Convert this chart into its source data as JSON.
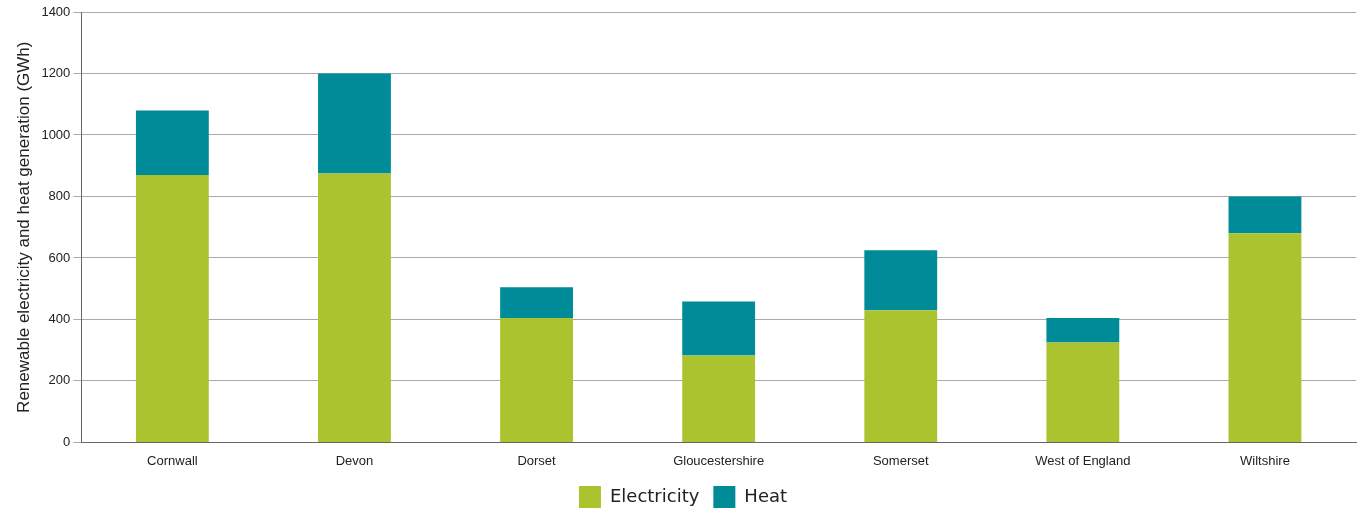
{
  "chart_data": {
    "type": "bar",
    "ylabel": "Renewable electricity and heat generation (GWh)",
    "categories": [
      "Cornwall",
      "Devon",
      "Dorset",
      "Gloucestershire",
      "Somerset",
      "West of England",
      "Wiltshire"
    ],
    "stacked": true,
    "series": [
      {
        "name": "Electricity",
        "color": "#abc32f",
        "values": [
          870,
          875,
          405,
          283,
          430,
          325,
          680
        ]
      },
      {
        "name": "Heat",
        "color": "#008b99",
        "values": [
          210,
          325,
          100,
          175,
          195,
          80,
          120
        ]
      }
    ],
    "ylim": [
      0,
      1400
    ],
    "yticks": [
      0,
      200,
      400,
      600,
      800,
      1000,
      1200,
      1400
    ],
    "grid": "y",
    "legend": "bottom"
  }
}
